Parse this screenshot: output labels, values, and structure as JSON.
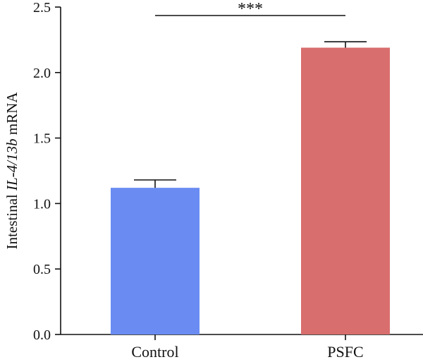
{
  "chart_data": {
    "type": "bar",
    "categories": [
      "Control",
      "PSFC"
    ],
    "values": [
      1.12,
      2.19
    ],
    "errors": [
      0.06,
      0.045
    ],
    "colors": [
      "#6a8cf2",
      "#d96e6e"
    ],
    "ylabel_parts": [
      {
        "text": "Intestinal ",
        "italic": false
      },
      {
        "text": "IL-4/13b",
        "italic": true
      },
      {
        "text": " mRNA",
        "italic": false
      }
    ],
    "ylim": [
      0,
      2.5
    ],
    "yticks": [
      "0.0",
      "0.5",
      "1.0",
      "1.5",
      "2.0",
      "2.5"
    ],
    "significance": {
      "label": "***",
      "between": [
        "Control",
        "PSFC"
      ]
    },
    "grid": false,
    "legend": "none"
  }
}
